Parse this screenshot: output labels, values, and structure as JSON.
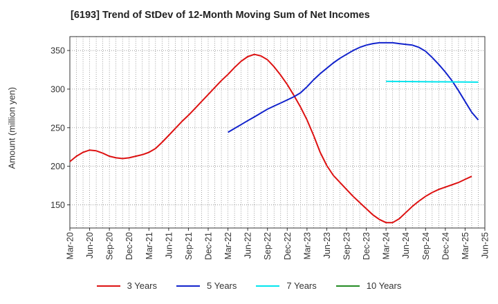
{
  "chart_data": {
    "type": "line",
    "title": "[6193]  Trend of StDev of 12-Month Moving Sum of Net Incomes",
    "ylabel": "Amount (million yen)",
    "xlabel": "",
    "ylim": [
      120,
      368
    ],
    "y_ticks": [
      150,
      200,
      250,
      300,
      350
    ],
    "x_ticks": [
      "Mar-20",
      "Jun-20",
      "Sep-20",
      "Dec-20",
      "Mar-21",
      "Jun-21",
      "Sep-21",
      "Dec-21",
      "Mar-22",
      "Jun-22",
      "Sep-22",
      "Dec-22",
      "Mar-23",
      "Jun-23",
      "Sep-23",
      "Dec-23",
      "Mar-24",
      "Jun-24",
      "Sep-24",
      "Dec-24",
      "Mar-25",
      "Jun-25"
    ],
    "grid": true,
    "legend_position": "bottom",
    "x_start": "2020-03",
    "series": [
      {
        "name": "3 Years",
        "color": "#dd1111",
        "points": [
          [
            "2020-03",
            206
          ],
          [
            "2020-04",
            213
          ],
          [
            "2020-05",
            218
          ],
          [
            "2020-06",
            221
          ],
          [
            "2020-07",
            220
          ],
          [
            "2020-08",
            217
          ],
          [
            "2020-09",
            213
          ],
          [
            "2020-10",
            211
          ],
          [
            "2020-11",
            210
          ],
          [
            "2020-12",
            211
          ],
          [
            "2021-01",
            213
          ],
          [
            "2021-02",
            215
          ],
          [
            "2021-03",
            218
          ],
          [
            "2021-04",
            223
          ],
          [
            "2021-05",
            231
          ],
          [
            "2021-06",
            240
          ],
          [
            "2021-07",
            249
          ],
          [
            "2021-08",
            258
          ],
          [
            "2021-09",
            266
          ],
          [
            "2021-10",
            275
          ],
          [
            "2021-11",
            284
          ],
          [
            "2021-12",
            293
          ],
          [
            "2022-01",
            302
          ],
          [
            "2022-02",
            311
          ],
          [
            "2022-03",
            319
          ],
          [
            "2022-04",
            328
          ],
          [
            "2022-05",
            336
          ],
          [
            "2022-06",
            342
          ],
          [
            "2022-07",
            345
          ],
          [
            "2022-08",
            343
          ],
          [
            "2022-09",
            338
          ],
          [
            "2022-10",
            329
          ],
          [
            "2022-11",
            318
          ],
          [
            "2022-12",
            306
          ],
          [
            "2023-01",
            292
          ],
          [
            "2023-02",
            277
          ],
          [
            "2023-03",
            260
          ],
          [
            "2023-04",
            240
          ],
          [
            "2023-05",
            218
          ],
          [
            "2023-06",
            201
          ],
          [
            "2023-07",
            188
          ],
          [
            "2023-08",
            179
          ],
          [
            "2023-09",
            170
          ],
          [
            "2023-10",
            161
          ],
          [
            "2023-11",
            153
          ],
          [
            "2023-12",
            145
          ],
          [
            "2024-01",
            137
          ],
          [
            "2024-02",
            131
          ],
          [
            "2024-03",
            127
          ],
          [
            "2024-04",
            127
          ],
          [
            "2024-05",
            132
          ],
          [
            "2024-06",
            140
          ],
          [
            "2024-07",
            148
          ],
          [
            "2024-08",
            155
          ],
          [
            "2024-09",
            161
          ],
          [
            "2024-10",
            166
          ],
          [
            "2024-11",
            170
          ],
          [
            "2024-12",
            173
          ],
          [
            "2025-01",
            176
          ],
          [
            "2025-02",
            179
          ],
          [
            "2025-03",
            183
          ],
          [
            "2025-04",
            187
          ]
        ]
      },
      {
        "name": "5 Years",
        "color": "#1122cc",
        "points": [
          [
            "2022-03",
            244
          ],
          [
            "2022-04",
            249
          ],
          [
            "2022-05",
            254
          ],
          [
            "2022-06",
            259
          ],
          [
            "2022-07",
            264
          ],
          [
            "2022-08",
            269
          ],
          [
            "2022-09",
            274
          ],
          [
            "2022-10",
            278
          ],
          [
            "2022-11",
            282
          ],
          [
            "2022-12",
            286
          ],
          [
            "2023-01",
            290
          ],
          [
            "2023-02",
            295
          ],
          [
            "2023-03",
            303
          ],
          [
            "2023-04",
            312
          ],
          [
            "2023-05",
            320
          ],
          [
            "2023-06",
            327
          ],
          [
            "2023-07",
            334
          ],
          [
            "2023-08",
            340
          ],
          [
            "2023-09",
            345
          ],
          [
            "2023-10",
            350
          ],
          [
            "2023-11",
            354
          ],
          [
            "2023-12",
            357
          ],
          [
            "2024-01",
            359
          ],
          [
            "2024-02",
            360
          ],
          [
            "2024-03",
            360
          ],
          [
            "2024-04",
            360
          ],
          [
            "2024-05",
            359
          ],
          [
            "2024-06",
            358
          ],
          [
            "2024-07",
            357
          ],
          [
            "2024-08",
            354
          ],
          [
            "2024-09",
            349
          ],
          [
            "2024-10",
            341
          ],
          [
            "2024-11",
            332
          ],
          [
            "2024-12",
            322
          ],
          [
            "2025-01",
            311
          ],
          [
            "2025-02",
            298
          ],
          [
            "2025-03",
            284
          ],
          [
            "2025-04",
            270
          ],
          [
            "2025-05",
            260
          ]
        ]
      },
      {
        "name": "7 Years",
        "color": "#00e5ee",
        "points": [
          [
            "2024-03",
            310
          ],
          [
            "2025-05",
            309
          ]
        ]
      },
      {
        "name": "10 Years",
        "color": "#228b22",
        "points": []
      }
    ]
  }
}
